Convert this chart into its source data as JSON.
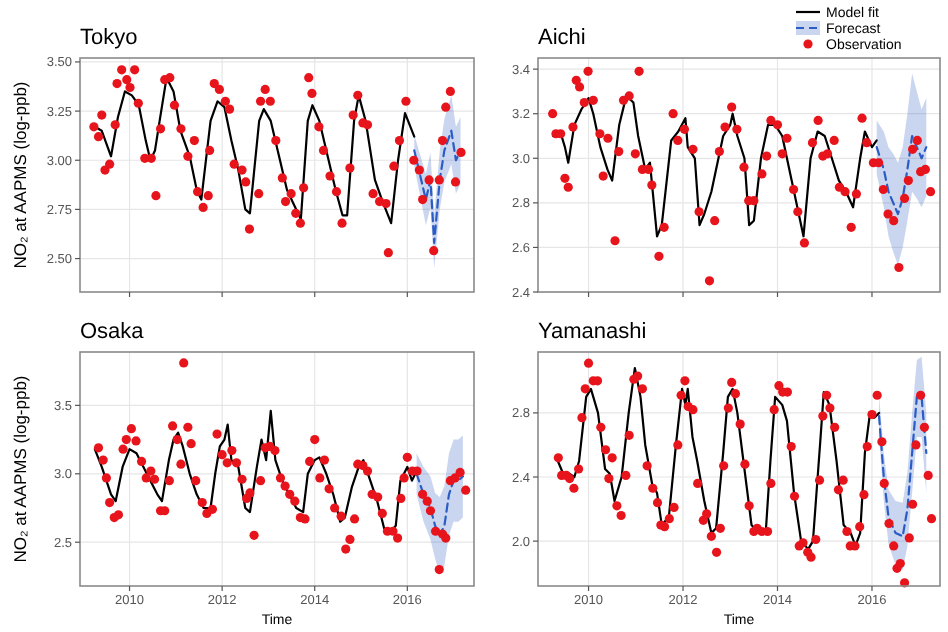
{
  "chart_data": [
    {
      "type": "line",
      "title": "Tokyo",
      "ylabel": "NO₂ at AAPMS (log-ppb)",
      "xlim": [
        2008.93,
        2017.44
      ],
      "xticks": [
        2010,
        2012,
        2014,
        2016
      ],
      "ylim": [
        2.33,
        3.52
      ],
      "yticks": [
        {
          "value": 2.5,
          "label": "2.50"
        },
        {
          "value": 2.75,
          "label": "2.75"
        },
        {
          "value": 3.0,
          "label": "3.00"
        },
        {
          "value": 3.25,
          "label": "3.25"
        },
        {
          "value": 3.5,
          "label": "3.50"
        }
      ],
      "grid": true,
      "tick_labels": "y",
      "series": [
        {
          "type": "line",
          "color": "#000000",
          "line_style": "solid",
          "x": [
            2009.25,
            2009.4,
            2009.6,
            2009.75,
            2009.9,
            2010.05,
            2010.2,
            2010.35,
            2010.45,
            2010.55,
            2010.65,
            2010.8,
            2010.95,
            2011.1,
            2011.3,
            2011.45,
            2011.55,
            2011.75,
            2011.9,
            2012.05,
            2012.2,
            2012.35,
            2012.5,
            2012.6,
            2012.8,
            2012.9,
            2013.05,
            2013.2,
            2013.4,
            2013.6,
            2013.7,
            2013.85,
            2013.95,
            2014.1,
            2014.3,
            2014.45,
            2014.6,
            2014.7,
            2014.85,
            2014.95,
            2015.1,
            2015.3,
            2015.45,
            2015.65,
            2015.8,
            2015.95,
            2016.05,
            2016.15
          ],
          "values": [
            3.17,
            3.15,
            3.02,
            3.22,
            3.35,
            3.33,
            3.28,
            3.1,
            3.0,
            3.05,
            3.2,
            3.42,
            3.35,
            3.15,
            3.02,
            2.85,
            2.8,
            3.2,
            3.3,
            3.27,
            3.1,
            2.95,
            2.75,
            2.73,
            3.2,
            3.26,
            3.2,
            3.05,
            2.85,
            2.75,
            2.7,
            3.2,
            3.28,
            3.2,
            3.0,
            2.85,
            2.72,
            2.72,
            3.2,
            3.33,
            3.2,
            2.9,
            2.8,
            2.68,
            3.0,
            3.24,
            3.18,
            3.12
          ]
        },
        {
          "type": "line",
          "color": "#2a5cc4",
          "line_style": "dashed",
          "x": [
            2016.15,
            2016.3,
            2016.4,
            2016.5,
            2016.58,
            2016.7,
            2016.8,
            2016.95,
            2017.05,
            2017.15
          ],
          "values": [
            3.05,
            2.9,
            2.8,
            2.9,
            2.58,
            2.9,
            3.05,
            3.15,
            3.0,
            3.05
          ],
          "lower": [
            2.97,
            2.79,
            2.67,
            2.76,
            2.45,
            2.75,
            2.89,
            2.98,
            2.83,
            2.88
          ],
          "upper": [
            3.13,
            3.01,
            2.93,
            3.04,
            2.72,
            3.05,
            3.21,
            3.33,
            3.17,
            3.22
          ]
        },
        {
          "type": "scatter",
          "color": "#e8141c",
          "marker": "circle",
          "x": [
            2009.23,
            2009.33,
            2009.4,
            2009.47,
            2009.57,
            2009.69,
            2009.73,
            2009.83,
            2009.94,
            2010.01,
            2010.11,
            2010.19,
            2010.33,
            2010.47,
            2010.57,
            2010.67,
            2010.76,
            2010.87,
            2010.97,
            2011.11,
            2011.26,
            2011.4,
            2011.47,
            2011.59,
            2011.7,
            2011.73,
            2011.83,
            2011.94,
            2012.07,
            2012.16,
            2012.26,
            2012.43,
            2012.51,
            2012.59,
            2012.79,
            2012.83,
            2012.93,
            2013.04,
            2013.16,
            2013.3,
            2013.37,
            2013.49,
            2013.59,
            2013.69,
            2013.76,
            2013.87,
            2013.94,
            2014.09,
            2014.19,
            2014.33,
            2014.47,
            2014.59,
            2014.76,
            2014.83,
            2014.93,
            2015.04,
            2015.14,
            2015.26,
            2015.4,
            2015.54,
            2015.59,
            2015.71,
            2015.83,
            2015.97,
            2016.14,
            2016.26,
            2016.33,
            2016.47,
            2016.57,
            2016.69,
            2016.76,
            2016.83,
            2016.93,
            2017.04,
            2017.16
          ],
          "values": [
            3.17,
            3.12,
            3.23,
            2.95,
            2.98,
            3.18,
            3.39,
            3.46,
            3.41,
            3.37,
            3.46,
            3.29,
            3.01,
            3.01,
            2.82,
            3.16,
            3.41,
            3.42,
            3.28,
            3.16,
            3.02,
            3.1,
            2.84,
            2.76,
            2.82,
            3.05,
            3.39,
            3.36,
            3.3,
            3.26,
            2.98,
            2.95,
            2.89,
            2.65,
            2.83,
            3.3,
            3.36,
            3.3,
            3.1,
            2.91,
            2.79,
            2.83,
            2.73,
            2.68,
            2.86,
            3.42,
            3.34,
            3.17,
            3.05,
            2.92,
            2.84,
            2.68,
            2.96,
            3.23,
            3.33,
            3.19,
            3.18,
            2.83,
            2.79,
            2.78,
            2.53,
            2.97,
            3.1,
            3.3,
            3.0,
            2.95,
            2.8,
            2.9,
            2.54,
            2.9,
            3.1,
            3.27,
            3.35,
            2.89,
            3.04
          ]
        }
      ]
    },
    {
      "type": "line",
      "title": "Aichi",
      "legend": "top right",
      "xlim": [
        2008.93,
        2017.44
      ],
      "xticks": [
        2010,
        2012,
        2014,
        2016
      ],
      "ylim": [
        2.4,
        3.45
      ],
      "yticks": [
        {
          "value": 2.4,
          "label": "2.4"
        },
        {
          "value": 2.6,
          "label": "2.6"
        },
        {
          "value": 2.8,
          "label": "2.8"
        },
        {
          "value": 3.0,
          "label": "3.0"
        },
        {
          "value": 3.2,
          "label": "3.2"
        },
        {
          "value": 3.4,
          "label": "3.4"
        }
      ],
      "grid": true,
      "tick_labels": "y",
      "series": [
        {
          "type": "line",
          "name": "Model fit",
          "color": "#000000",
          "line_style": "solid",
          "x": [
            2009.25,
            2009.4,
            2009.5,
            2009.57,
            2009.7,
            2009.85,
            2010.0,
            2010.1,
            2010.25,
            2010.4,
            2010.5,
            2010.65,
            2010.8,
            2010.95,
            2011.05,
            2011.2,
            2011.3,
            2011.45,
            2011.55,
            2011.75,
            2011.9,
            2012.05,
            2012.1,
            2012.25,
            2012.35,
            2012.45,
            2012.6,
            2012.75,
            2012.85,
            2013.0,
            2013.05,
            2013.15,
            2013.3,
            2013.4,
            2013.5,
            2013.65,
            2013.8,
            2013.95,
            2014.1,
            2014.3,
            2014.45,
            2014.55,
            2014.7,
            2014.85,
            2015.0,
            2015.15,
            2015.3,
            2015.45,
            2015.6,
            2015.75,
            2015.85,
            2016.0,
            2016.1
          ],
          "values": [
            3.1,
            3.12,
            3.05,
            2.98,
            3.15,
            3.22,
            3.27,
            3.2,
            3.05,
            2.95,
            2.9,
            3.15,
            3.28,
            3.25,
            3.1,
            2.95,
            2.98,
            2.65,
            2.7,
            3.08,
            3.12,
            3.18,
            3.05,
            3.0,
            2.7,
            2.75,
            2.85,
            3.0,
            3.1,
            3.15,
            3.2,
            3.1,
            3.0,
            2.7,
            2.72,
            3.0,
            3.15,
            3.15,
            3.1,
            2.9,
            2.75,
            2.65,
            3.0,
            3.12,
            3.1,
            3.0,
            2.9,
            2.85,
            2.78,
            3.0,
            3.12,
            3.05,
            3.08
          ]
        },
        {
          "type": "line",
          "name": "Forecast",
          "color": "#2a5cc4",
          "line_style": "dashed",
          "x": [
            2016.1,
            2016.25,
            2016.35,
            2016.45,
            2016.55,
            2016.65,
            2016.75,
            2016.85,
            2016.95,
            2017.05,
            2017.15
          ],
          "values": [
            3.05,
            2.95,
            2.85,
            2.8,
            2.75,
            2.82,
            2.95,
            3.1,
            3.05,
            3.0,
            3.05
          ],
          "lower": [
            2.93,
            2.78,
            2.65,
            2.58,
            2.52,
            2.6,
            2.72,
            2.85,
            2.82,
            2.78,
            2.83
          ],
          "upper": [
            3.17,
            3.12,
            3.05,
            3.02,
            2.98,
            3.05,
            3.2,
            3.38,
            3.3,
            3.22,
            3.27
          ]
        },
        {
          "type": "scatter",
          "name": "Observation",
          "color": "#e8141c",
          "marker": "circle",
          "x": [
            2009.24,
            2009.31,
            2009.41,
            2009.5,
            2009.57,
            2009.67,
            2009.74,
            2009.81,
            2009.91,
            2009.99,
            2010.1,
            2010.24,
            2010.31,
            2010.41,
            2010.56,
            2010.64,
            2010.74,
            2010.86,
            2010.99,
            2011.07,
            2011.14,
            2011.27,
            2011.34,
            2011.49,
            2011.6,
            2011.79,
            2011.89,
            2012.03,
            2012.21,
            2012.34,
            2012.56,
            2012.67,
            2012.77,
            2012.89,
            2013.03,
            2013.14,
            2013.29,
            2013.39,
            2013.5,
            2013.67,
            2013.77,
            2013.86,
            2014.0,
            2014.1,
            2014.2,
            2014.34,
            2014.43,
            2014.57,
            2014.74,
            2014.86,
            2014.96,
            2015.06,
            2015.2,
            2015.31,
            2015.43,
            2015.56,
            2015.67,
            2015.79,
            2015.89,
            2016.03,
            2016.14,
            2016.24,
            2016.34,
            2016.46,
            2016.57,
            2016.69,
            2016.77,
            2016.86,
            2016.96,
            2017.03,
            2017.13,
            2017.24
          ],
          "values": [
            3.2,
            3.11,
            3.11,
            2.91,
            2.87,
            3.14,
            3.35,
            3.32,
            3.25,
            3.39,
            3.26,
            3.11,
            2.92,
            3.09,
            2.63,
            3.03,
            3.26,
            3.28,
            3.02,
            3.39,
            2.95,
            2.95,
            2.88,
            2.56,
            2.69,
            3.2,
            3.08,
            3.13,
            3.04,
            2.76,
            2.45,
            2.72,
            3.03,
            3.14,
            3.23,
            3.13,
            2.96,
            2.81,
            2.81,
            2.93,
            3.01,
            3.17,
            3.15,
            3.02,
            3.09,
            2.86,
            2.76,
            2.62,
            3.07,
            3.17,
            3.01,
            3.02,
            3.08,
            2.87,
            2.85,
            2.69,
            2.84,
            3.18,
            3.07,
            2.98,
            2.98,
            2.86,
            2.75,
            2.72,
            2.51,
            2.82,
            2.9,
            3.04,
            3.08,
            2.94,
            2.95,
            2.85
          ]
        }
      ]
    },
    {
      "type": "line",
      "title": "Osaka",
      "ylabel": "NO₂ at AAPMS (log-ppb)",
      "xlabel": "Time",
      "xlim": [
        2008.93,
        2017.44
      ],
      "xticks": [
        2010,
        2012,
        2014,
        2016
      ],
      "ylim": [
        2.18,
        3.89
      ],
      "yticks": [
        {
          "value": 2.5,
          "label": "2.5"
        },
        {
          "value": 3.0,
          "label": "3.0"
        },
        {
          "value": 3.5,
          "label": "3.5"
        }
      ],
      "grid": true,
      "series": [
        {
          "type": "line",
          "color": "#000000",
          "line_style": "solid",
          "x": [
            2009.25,
            2009.4,
            2009.6,
            2009.7,
            2009.85,
            2010.0,
            2010.15,
            2010.3,
            2010.45,
            2010.6,
            2010.7,
            2010.85,
            2010.95,
            2011.05,
            2011.15,
            2011.3,
            2011.45,
            2011.6,
            2011.75,
            2011.85,
            2011.95,
            2012.05,
            2012.12,
            2012.2,
            2012.35,
            2012.5,
            2012.6,
            2012.75,
            2012.85,
            2012.95,
            2013.05,
            2013.15,
            2013.3,
            2013.45,
            2013.6,
            2013.75,
            2013.85,
            2014.0,
            2014.1,
            2014.25,
            2014.4,
            2014.55,
            2014.65,
            2014.8,
            2014.95,
            2015.05,
            2015.2,
            2015.35,
            2015.5,
            2015.65,
            2015.75,
            2015.85,
            2016.0,
            2016.1,
            2016.2
          ],
          "values": [
            3.18,
            3.05,
            2.85,
            2.8,
            3.05,
            3.18,
            3.15,
            3.05,
            2.95,
            2.85,
            2.8,
            3.1,
            3.25,
            3.3,
            3.2,
            3.0,
            2.85,
            2.75,
            2.75,
            3.0,
            3.2,
            3.25,
            3.36,
            3.1,
            3.05,
            2.75,
            2.72,
            3.05,
            3.25,
            3.1,
            3.46,
            3.1,
            2.95,
            2.85,
            2.75,
            2.72,
            3.0,
            3.1,
            3.12,
            3.0,
            2.85,
            2.65,
            2.68,
            2.9,
            3.05,
            3.1,
            2.95,
            2.8,
            2.6,
            2.58,
            2.62,
            2.95,
            3.05,
            2.95,
            3.02
          ]
        },
        {
          "type": "line",
          "color": "#2a5cc4",
          "line_style": "dashed",
          "x": [
            2016.2,
            2016.35,
            2016.5,
            2016.6,
            2016.7,
            2016.8,
            2016.9,
            2017.0,
            2017.1,
            2017.2
          ],
          "values": [
            3.0,
            2.85,
            2.75,
            2.62,
            2.55,
            2.62,
            2.85,
            2.95,
            2.95,
            2.98
          ],
          "lower": [
            2.85,
            2.65,
            2.52,
            2.38,
            2.27,
            2.33,
            2.55,
            2.65,
            2.65,
            2.68
          ],
          "upper": [
            3.15,
            3.05,
            2.98,
            2.86,
            2.83,
            2.91,
            3.15,
            3.25,
            3.25,
            3.28
          ]
        },
        {
          "type": "scatter",
          "color": "#e8141c",
          "marker": "circle",
          "x": [
            2009.33,
            2009.43,
            2009.5,
            2009.57,
            2009.67,
            2009.76,
            2009.86,
            2009.93,
            2010.04,
            2010.14,
            2010.26,
            2010.36,
            2010.46,
            2010.54,
            2010.67,
            2010.76,
            2010.86,
            2010.93,
            2011.03,
            2011.11,
            2011.17,
            2011.26,
            2011.33,
            2011.43,
            2011.57,
            2011.67,
            2011.79,
            2011.89,
            2012.0,
            2012.11,
            2012.21,
            2012.31,
            2012.43,
            2012.53,
            2012.6,
            2012.69,
            2012.83,
            2012.93,
            2013.03,
            2013.14,
            2013.26,
            2013.36,
            2013.46,
            2013.57,
            2013.69,
            2013.79,
            2013.89,
            2014.0,
            2014.11,
            2014.21,
            2014.31,
            2014.43,
            2014.57,
            2014.67,
            2014.76,
            2014.86,
            2014.93,
            2015.04,
            2015.14,
            2015.24,
            2015.36,
            2015.46,
            2015.57,
            2015.69,
            2015.79,
            2015.86,
            2015.93,
            2016.0,
            2016.11,
            2016.21,
            2016.33,
            2016.43,
            2016.5,
            2016.61,
            2016.69,
            2016.76,
            2016.83,
            2016.93,
            2017.03,
            2017.14,
            2017.26
          ],
          "values": [
            3.19,
            3.1,
            2.97,
            2.79,
            2.68,
            2.7,
            3.18,
            3.25,
            3.33,
            3.24,
            3.09,
            2.97,
            3.02,
            2.96,
            2.73,
            2.73,
            2.95,
            3.35,
            3.25,
            3.07,
            3.81,
            3.34,
            3.22,
            2.95,
            2.79,
            2.71,
            2.74,
            3.29,
            3.14,
            3.08,
            3.17,
            3.08,
            2.96,
            2.82,
            2.86,
            2.55,
            2.95,
            3.19,
            3.2,
            3.17,
            2.97,
            2.91,
            2.85,
            2.8,
            2.68,
            2.67,
            3.09,
            3.25,
            2.97,
            3.1,
            2.89,
            2.75,
            2.69,
            2.45,
            2.52,
            2.67,
            3.07,
            3.06,
            3.02,
            2.85,
            2.83,
            2.71,
            2.58,
            2.58,
            2.53,
            2.82,
            2.97,
            3.12,
            3.02,
            3.02,
            2.85,
            2.8,
            2.73,
            2.58,
            2.3,
            2.56,
            2.53,
            2.95,
            2.97,
            3.01,
            2.88
          ]
        }
      ]
    },
    {
      "type": "line",
      "title": "Yamanashi",
      "xlabel": "Time",
      "xlim": [
        2008.93,
        2017.44
      ],
      "xticks": [
        2010,
        2012,
        2014,
        2016
      ],
      "ylim": [
        1.72,
        3.18
      ],
      "yticks": [
        {
          "value": 2.0,
          "label": "2.0"
        },
        {
          "value": 2.4,
          "label": "2.4"
        },
        {
          "value": 2.8,
          "label": "2.8"
        }
      ],
      "grid": true,
      "series": [
        {
          "type": "line",
          "color": "#000000",
          "line_style": "solid",
          "x": [
            2009.35,
            2009.45,
            2009.6,
            2009.7,
            2009.8,
            2009.95,
            2010.05,
            2010.2,
            2010.35,
            2010.45,
            2010.55,
            2010.7,
            2010.85,
            2010.98,
            2011.1,
            2011.2,
            2011.35,
            2011.45,
            2011.55,
            2011.7,
            2011.85,
            2011.98,
            2012.05,
            2012.1,
            2012.2,
            2012.3,
            2012.45,
            2012.6,
            2012.7,
            2012.85,
            2012.95,
            2013.05,
            2013.15,
            2013.3,
            2013.45,
            2013.6,
            2013.75,
            2013.85,
            2013.95,
            2014.1,
            2014.2,
            2014.35,
            2014.5,
            2014.65,
            2014.75,
            2014.9,
            2014.98,
            2015.1,
            2015.25,
            2015.4,
            2015.55,
            2015.65,
            2015.75,
            2015.85,
            2015.95,
            2016.05,
            2016.15
          ],
          "values": [
            2.5,
            2.43,
            2.42,
            2.4,
            2.5,
            2.9,
            2.95,
            2.8,
            2.45,
            2.42,
            2.25,
            2.4,
            2.8,
            3.08,
            2.9,
            2.6,
            2.35,
            2.3,
            2.1,
            2.15,
            2.6,
            2.95,
            2.85,
            2.95,
            2.65,
            2.5,
            2.25,
            2.05,
            2.08,
            2.55,
            2.9,
            2.95,
            2.8,
            2.45,
            2.1,
            2.05,
            2.05,
            2.5,
            2.9,
            2.85,
            2.75,
            2.3,
            2.0,
            1.95,
            2.0,
            2.6,
            2.93,
            2.85,
            2.5,
            2.1,
            2.05,
            1.97,
            2.05,
            2.55,
            2.78,
            2.77,
            2.8
          ]
        },
        {
          "type": "line",
          "color": "#2a5cc4",
          "line_style": "dashed",
          "x": [
            2016.15,
            2016.25,
            2016.35,
            2016.5,
            2016.65,
            2016.75,
            2016.85,
            2016.95,
            2017.05,
            2017.15
          ],
          "values": [
            2.78,
            2.4,
            2.15,
            2.05,
            2.03,
            2.2,
            2.55,
            2.9,
            2.9,
            2.55
          ],
          "lower": [
            2.65,
            2.25,
            1.98,
            1.85,
            1.82,
            1.97,
            2.3,
            2.65,
            2.65,
            2.3
          ],
          "upper": [
            2.91,
            2.55,
            2.32,
            2.25,
            2.24,
            2.43,
            2.8,
            3.13,
            3.15,
            2.8
          ]
        },
        {
          "type": "scatter",
          "color": "#e8141c",
          "marker": "circle",
          "x": [
            2009.36,
            2009.43,
            2009.53,
            2009.6,
            2009.69,
            2009.79,
            2009.86,
            2009.93,
            2010.0,
            2010.1,
            2010.19,
            2010.26,
            2010.36,
            2010.43,
            2010.5,
            2010.6,
            2010.69,
            2010.79,
            2010.86,
            2010.96,
            2011.04,
            2011.14,
            2011.24,
            2011.36,
            2011.46,
            2011.53,
            2011.61,
            2011.71,
            2011.81,
            2011.89,
            2011.96,
            2012.04,
            2012.11,
            2012.21,
            2012.31,
            2012.43,
            2012.5,
            2012.6,
            2012.71,
            2012.79,
            2012.86,
            2012.96,
            2013.03,
            2013.11,
            2013.21,
            2013.31,
            2013.4,
            2013.5,
            2013.57,
            2013.67,
            2013.79,
            2013.86,
            2013.93,
            2014.03,
            2014.11,
            2014.21,
            2014.29,
            2014.36,
            2014.46,
            2014.54,
            2014.64,
            2014.71,
            2014.81,
            2014.89,
            2014.96,
            2015.04,
            2015.11,
            2015.21,
            2015.29,
            2015.39,
            2015.47,
            2015.54,
            2015.64,
            2015.74,
            2015.83,
            2015.9,
            2016.0,
            2016.11,
            2016.21,
            2016.26,
            2016.36,
            2016.46,
            2016.53,
            2016.6,
            2016.69,
            2016.79,
            2016.86,
            2016.93,
            2017.03,
            2017.11,
            2017.19,
            2017.26
          ],
          "values": [
            2.52,
            2.41,
            2.41,
            2.39,
            2.33,
            2.45,
            2.77,
            2.95,
            3.11,
            3.0,
            3.0,
            2.71,
            2.57,
            2.39,
            2.52,
            2.22,
            2.16,
            2.41,
            2.66,
            3.01,
            3.03,
            2.95,
            2.47,
            2.33,
            2.24,
            2.1,
            2.09,
            2.14,
            2.21,
            2.6,
            2.91,
            3.0,
            2.84,
            2.82,
            2.36,
            2.13,
            2.17,
            2.03,
            1.93,
            2.08,
            2.47,
            2.83,
            2.99,
            2.92,
            2.73,
            2.48,
            2.22,
            2.06,
            2.08,
            2.06,
            2.06,
            2.36,
            2.82,
            2.97,
            2.93,
            2.93,
            2.59,
            2.28,
            1.97,
            1.99,
            1.93,
            1.9,
            2.01,
            2.38,
            2.78,
            2.91,
            2.83,
            2.71,
            2.32,
            2.38,
            2.06,
            1.97,
            1.97,
            2.09,
            2.29,
            2.59,
            2.79,
            2.91,
            2.62,
            2.36,
            2.11,
            1.97,
            1.83,
            1.86,
            1.74,
            2.02,
            2.23,
            2.6,
            2.91,
            2.71,
            2.41,
            2.14
          ]
        }
      ]
    }
  ]
}
